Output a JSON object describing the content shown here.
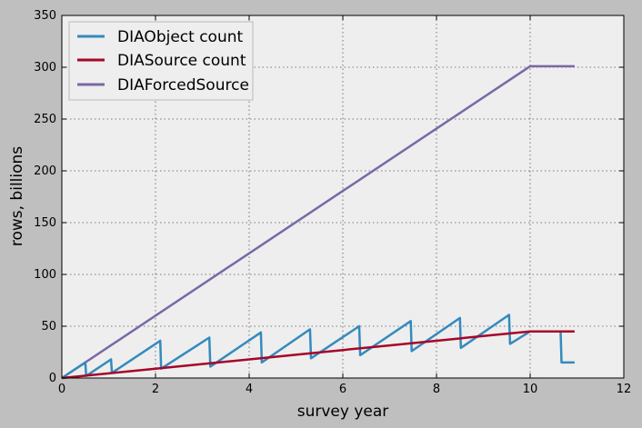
{
  "chart_data": {
    "type": "line",
    "xlabel": "survey year",
    "ylabel": "rows, billions",
    "xlim": [
      0,
      12
    ],
    "ylim": [
      0,
      350
    ],
    "xticks": [
      0,
      2,
      4,
      6,
      8,
      10,
      12
    ],
    "yticks": [
      0,
      50,
      100,
      150,
      200,
      250,
      300,
      350
    ],
    "xtick_labels": [
      "0",
      "2",
      "4",
      "6",
      "8",
      "10",
      "12"
    ],
    "ytick_labels": [
      "0",
      "50",
      "100",
      "150",
      "200",
      "250",
      "300",
      "350"
    ],
    "grid": true,
    "legend_position": "top-left",
    "background": "#eeeeee",
    "series": [
      {
        "name": "DIAObject count",
        "color": "#348abd",
        "x": [
          0,
          0.5,
          0.52,
          1.05,
          1.07,
          2.1,
          2.12,
          3.15,
          3.17,
          4.25,
          4.27,
          5.3,
          5.32,
          6.35,
          6.37,
          7.45,
          7.47,
          8.5,
          8.52,
          9.55,
          9.57,
          10.0,
          10.65,
          10.67,
          10.95
        ],
        "y": [
          0,
          15,
          2,
          18,
          5,
          36,
          9,
          39,
          11,
          44,
          15,
          47,
          19,
          50,
          22,
          55,
          26,
          58,
          29,
          61,
          33,
          45,
          45,
          15,
          15
        ]
      },
      {
        "name": "DIASource count",
        "color": "#a60628",
        "x": [
          0,
          1,
          2,
          3,
          4,
          5,
          6,
          7,
          8,
          9,
          10,
          10.95
        ],
        "y": [
          0,
          4.5,
          9,
          13.5,
          18,
          22.5,
          27,
          31.5,
          36,
          40.5,
          45,
          45
        ]
      },
      {
        "name": "DIAForcedSource",
        "color": "#7a68a6",
        "x": [
          0,
          10.0,
          10.95
        ],
        "y": [
          0,
          301,
          301
        ]
      }
    ]
  }
}
